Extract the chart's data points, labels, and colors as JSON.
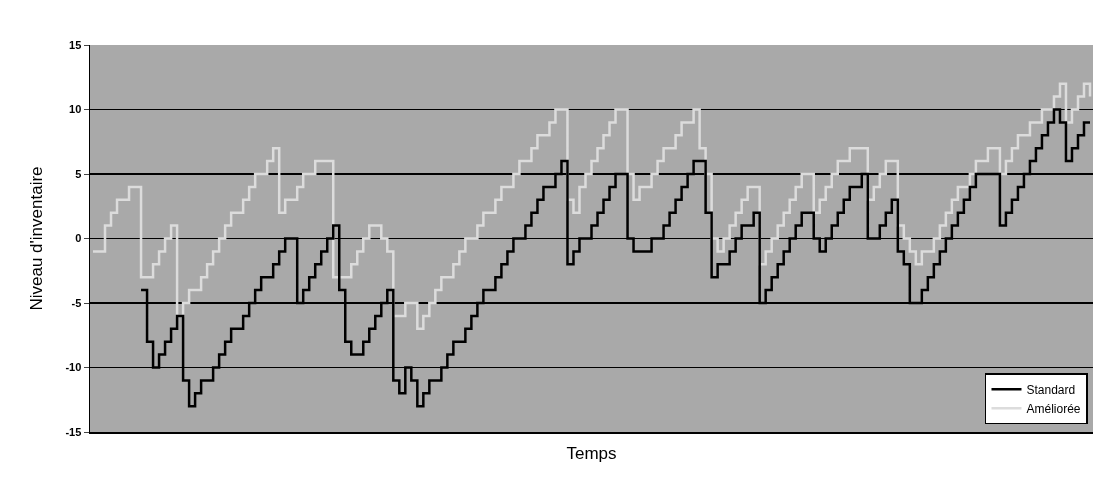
{
  "chart_data": {
    "type": "step",
    "xlabel": "Temps",
    "ylabel": "Niveau d'inventaire",
    "categories": [
      null,
      null,
      null,
      null,
      null,
      null,
      null,
      null,
      null,
      null,
      null,
      null,
      null,
      null,
      null,
      null,
      null,
      null,
      null,
      null,
      null,
      null,
      null,
      null,
      null,
      null,
      null,
      null,
      null,
      null,
      null,
      null,
      null,
      null,
      null,
      null,
      null,
      null,
      null,
      null,
      null,
      null,
      null,
      null,
      null,
      null,
      null,
      null,
      null,
      null,
      null,
      null,
      null,
      null,
      null,
      null,
      null,
      null,
      null,
      null,
      null,
      null,
      null,
      null,
      null,
      null,
      null,
      null,
      null,
      null,
      null,
      null,
      null,
      null,
      null,
      null,
      null,
      null,
      null,
      null,
      null,
      null,
      null,
      null,
      null,
      null,
      null,
      null,
      null,
      null,
      null,
      null,
      null,
      null,
      null,
      null,
      null,
      null,
      null,
      null,
      null,
      null,
      null,
      null,
      null,
      null,
      null,
      null,
      null,
      null,
      null,
      null,
      null,
      null,
      null,
      null,
      null,
      null,
      null,
      null,
      null,
      null,
      null,
      null,
      null,
      null,
      null,
      null,
      null,
      null,
      null,
      null,
      null,
      null,
      null,
      null,
      null,
      null,
      null,
      null,
      null,
      null,
      null,
      null,
      null,
      null,
      null,
      null,
      null,
      null,
      null,
      null,
      null,
      null,
      null,
      null,
      null,
      null,
      null,
      null,
      null,
      null,
      null,
      null,
      null,
      null,
      null
    ],
    "series": [
      {
        "name": "Standard",
        "color": "#000000",
        "values": [
          null,
          null,
          null,
          null,
          null,
          null,
          null,
          null,
          -4,
          -8,
          -10,
          -9,
          -8,
          -7,
          -6,
          -11,
          -13,
          -12,
          -11,
          -11,
          -10,
          -9,
          -8,
          -7,
          -7,
          -6,
          -5,
          -4,
          -3,
          -3,
          -2,
          -1,
          0,
          0,
          -5,
          -4,
          -3,
          -2,
          -1,
          0,
          1,
          -4,
          -8,
          -9,
          -9,
          -8,
          -7,
          -6,
          -5,
          -4,
          -11,
          -12,
          -10,
          -11,
          -13,
          -12,
          -11,
          -11,
          -10,
          -9,
          -8,
          -8,
          -7,
          -6,
          -5,
          -4,
          -4,
          -3,
          -2,
          -1,
          0,
          0,
          1,
          2,
          3,
          4,
          4,
          5,
          6,
          -2,
          -1,
          0,
          0,
          1,
          2,
          3,
          4,
          5,
          5,
          0,
          -1,
          -1,
          -1,
          0,
          0,
          1,
          2,
          3,
          4,
          5,
          6,
          6,
          2,
          -3,
          -2,
          -2,
          -1,
          0,
          1,
          1,
          2,
          -5,
          -4,
          -3,
          -2,
          -1,
          0,
          1,
          2,
          2,
          0,
          -1,
          0,
          1,
          2,
          3,
          4,
          4,
          5,
          0,
          0,
          1,
          2,
          3,
          -1,
          -2,
          -5,
          -5,
          -4,
          -3,
          -2,
          -1,
          0,
          1,
          2,
          3,
          4,
          5,
          5,
          5,
          5,
          1,
          2,
          3,
          4,
          5,
          6,
          7,
          8,
          9,
          10,
          9,
          6,
          7,
          8,
          9,
          9
        ]
      },
      {
        "name": "Améliorée",
        "color": "#dcdcdc",
        "values": [
          -1,
          -1,
          1,
          2,
          3,
          3,
          4,
          4,
          -3,
          -3,
          -2,
          -1,
          0,
          1,
          -6,
          -5,
          -4,
          -4,
          -3,
          -2,
          -1,
          0,
          1,
          2,
          2,
          3,
          4,
          5,
          5,
          6,
          7,
          2,
          3,
          3,
          4,
          5,
          5,
          6,
          6,
          6,
          -3,
          -3,
          -3,
          -2,
          -1,
          0,
          1,
          1,
          0,
          -1,
          -6,
          -6,
          -5,
          -5,
          -7,
          -6,
          -5,
          -4,
          -3,
          -3,
          -2,
          -1,
          0,
          0,
          1,
          2,
          2,
          3,
          4,
          4,
          5,
          6,
          6,
          7,
          8,
          8,
          9,
          10,
          10,
          3,
          2,
          4,
          5,
          6,
          7,
          8,
          9,
          10,
          10,
          5,
          3,
          4,
          4,
          5,
          6,
          7,
          7,
          8,
          9,
          9,
          10,
          7,
          5,
          0,
          -1,
          0,
          1,
          2,
          3,
          4,
          4,
          -2,
          -1,
          0,
          1,
          2,
          3,
          4,
          5,
          5,
          2,
          3,
          4,
          5,
          6,
          6,
          7,
          7,
          7,
          3,
          4,
          5,
          6,
          6,
          1,
          0,
          -1,
          -2,
          -1,
          -1,
          0,
          1,
          2,
          3,
          4,
          4,
          5,
          6,
          6,
          7,
          7,
          5,
          6,
          7,
          8,
          8,
          9,
          9,
          10,
          10,
          11,
          12,
          9,
          10,
          11,
          12,
          11
        ]
      }
    ],
    "ylim": [
      -15,
      15
    ],
    "yticks": [
      -15,
      -10,
      -5,
      0,
      5,
      10,
      15
    ],
    "grid": "y",
    "legend": "bottom right",
    "tick_labels": "y"
  }
}
